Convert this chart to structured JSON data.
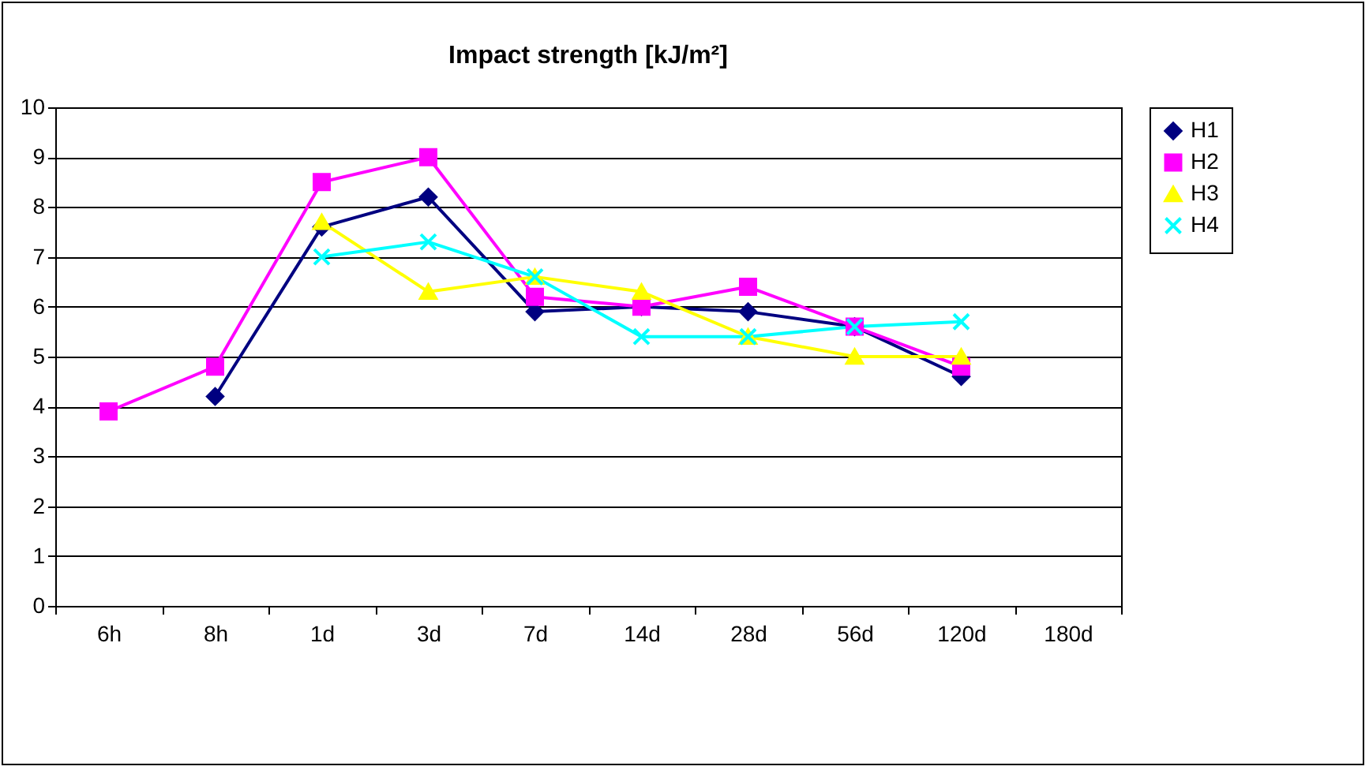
{
  "chart_data": {
    "type": "line",
    "title": "Impact strength [kJ/m²]",
    "categories": [
      "6h",
      "8h",
      "1d",
      "3d",
      "7d",
      "14d",
      "28d",
      "56d",
      "120d",
      "180d"
    ],
    "series": [
      {
        "name": "H1",
        "color": "#000080",
        "marker": "diamond",
        "values": [
          null,
          4.2,
          7.6,
          8.2,
          5.9,
          6.0,
          5.9,
          5.6,
          4.6,
          null
        ]
      },
      {
        "name": "H2",
        "color": "#ff00ff",
        "marker": "square",
        "values": [
          3.9,
          4.8,
          8.5,
          9.0,
          6.2,
          6.0,
          6.4,
          5.6,
          4.8,
          null
        ]
      },
      {
        "name": "H3",
        "color": "#ffff00",
        "marker": "triangle",
        "values": [
          null,
          null,
          7.7,
          6.3,
          6.6,
          6.3,
          5.4,
          5.0,
          5.0,
          null
        ]
      },
      {
        "name": "H4",
        "color": "#00ffff",
        "marker": "cross",
        "values": [
          null,
          null,
          7.0,
          7.3,
          6.6,
          5.4,
          5.4,
          5.6,
          5.7,
          null
        ]
      }
    ],
    "ylim": [
      0,
      10
    ],
    "yticks": [
      0,
      1,
      2,
      3,
      4,
      5,
      6,
      7,
      8,
      9,
      10
    ],
    "grid": "y",
    "legend": "right"
  }
}
